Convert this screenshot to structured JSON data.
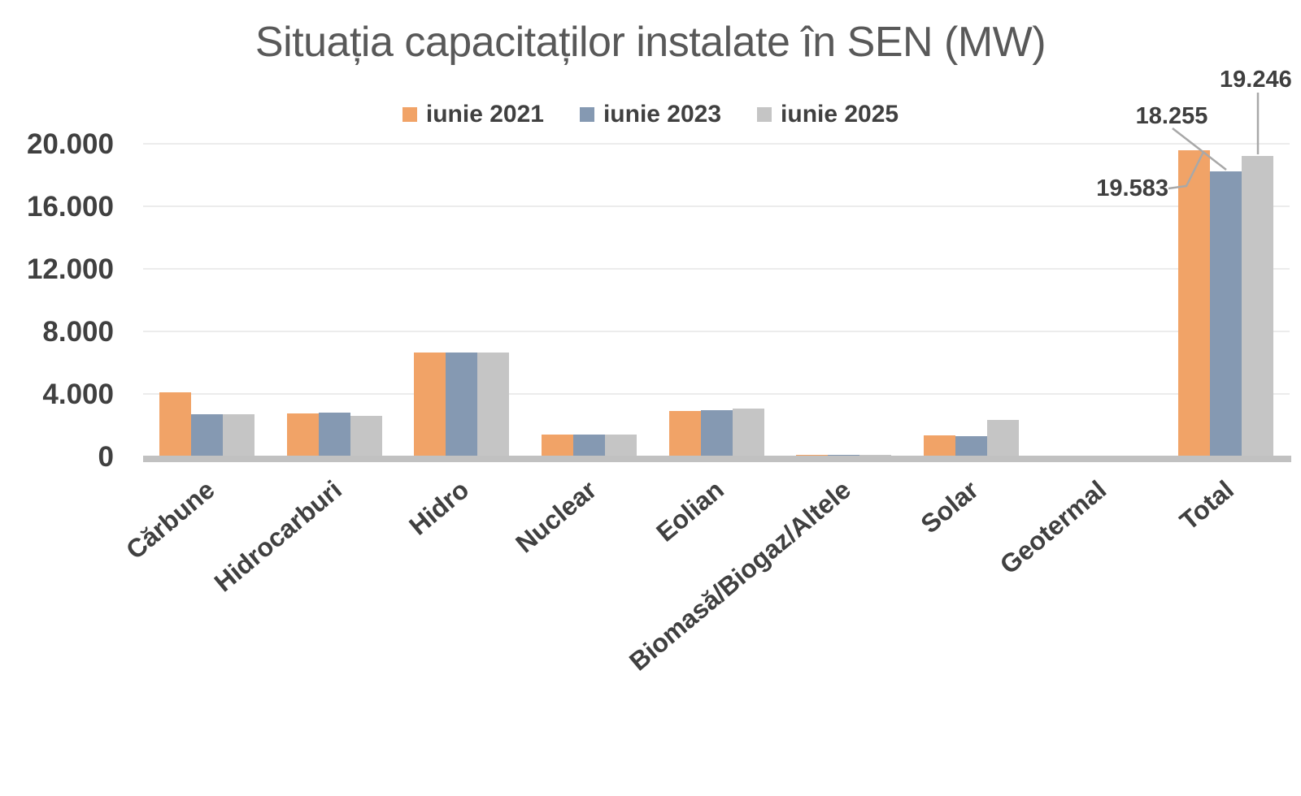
{
  "chart_data": {
    "type": "bar",
    "title": "Situația capacitaților instalate în SEN (MW)",
    "categories": [
      "Cărbune",
      "Hidrocarburi",
      "Hidro",
      "Nuclear",
      "Eolian",
      "Biomasă/Biogaz/Altele",
      "Solar",
      "Geotermal",
      "Total"
    ],
    "series": [
      {
        "name": "iunie 2021",
        "color": "#F1A367",
        "values": [
          4100,
          2750,
          6650,
          1400,
          2900,
          100,
          1350,
          0,
          19583
        ]
      },
      {
        "name": "iunie 2023",
        "color": "#8599B2",
        "values": [
          2700,
          2800,
          6650,
          1400,
          2950,
          100,
          1300,
          0,
          18255
        ]
      },
      {
        "name": "iunie 2025",
        "color": "#C5C5C5",
        "values": [
          2700,
          2600,
          6650,
          1400,
          3050,
          100,
          2350,
          0,
          19246
        ]
      }
    ],
    "ylim": [
      0,
      20000
    ],
    "ytick_values": [
      0,
      4000,
      8000,
      12000,
      16000,
      20000
    ],
    "ytick_labels": [
      "0",
      "4.000",
      "8.000",
      "12.000",
      "16.000",
      "20.000"
    ],
    "grid": true,
    "legend_position": "top",
    "annotations": [
      {
        "series": "iunie 2021",
        "category": "Total",
        "text": "19.583"
      },
      {
        "series": "iunie 2023",
        "category": "Total",
        "text": "18.255"
      },
      {
        "series": "iunie 2025",
        "category": "Total",
        "text": "19.246"
      }
    ],
    "colors": {
      "title_text": "#595959",
      "label_text": "#404040",
      "gridline": "#ECECEC",
      "axis_line": "#C1C1C1",
      "leader_line": "#A8A8A8"
    }
  }
}
